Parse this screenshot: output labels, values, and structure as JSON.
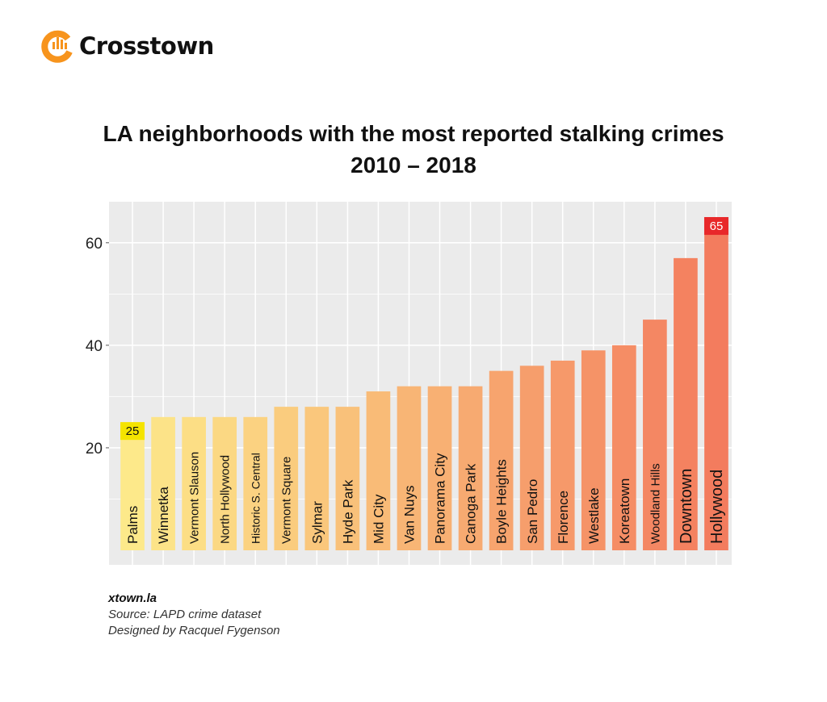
{
  "brand": {
    "name": "Crosstown",
    "accent": "#f7941d"
  },
  "chart_data": {
    "type": "bar",
    "title": "LA neighborhoods with the most reported stalking crimes",
    "subtitle": "2010 – 2018",
    "categories": [
      "Palms",
      "Winnetka",
      "Vermont Slauson",
      "North Hollywood",
      "Historic S. Central",
      "Vermont Square",
      "Sylmar",
      "Hyde Park",
      "Mid City",
      "Van Nuys",
      "Panorama City",
      "Canoga Park",
      "Boyle Heights",
      "San Pedro",
      "Florence",
      "Westlake",
      "Koreatown",
      "Woodland Hills",
      "Downtown",
      "Hollywood"
    ],
    "values": [
      25,
      26,
      26,
      26,
      26,
      28,
      28,
      28,
      31,
      32,
      32,
      32,
      35,
      36,
      37,
      39,
      40,
      45,
      57,
      65
    ],
    "data_labels": [
      {
        "category": "Palms",
        "text": "25",
        "color": "#f5e400"
      },
      {
        "category": "Hollywood",
        "text": "65",
        "color": "#e8282a"
      }
    ],
    "ylim": [
      0,
      68
    ],
    "yticks": [
      20,
      40,
      60
    ],
    "grid": true,
    "color_gradient": [
      "#fde98a",
      "#f37c5e"
    ],
    "panel_color": "#ebebeb"
  },
  "footer": {
    "site": "xtown.la",
    "source": "Source: LAPD crime dataset",
    "designer": "Designed by Racquel Fygenson"
  }
}
